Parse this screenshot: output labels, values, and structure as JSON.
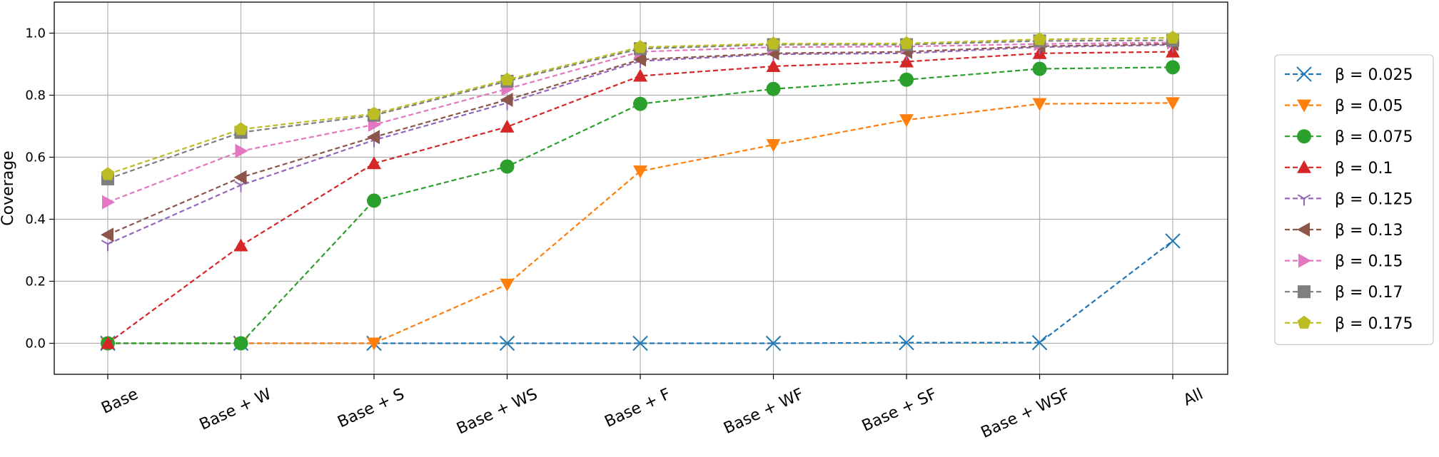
{
  "chart_data": {
    "type": "line",
    "title": "",
    "xlabel": "",
    "ylabel": "Coverage",
    "categories": [
      "Base",
      "Base + W",
      "Base + S",
      "Base + WS",
      "Base + F",
      "Base + WF",
      "Base + SF",
      "Base + WSF",
      "All"
    ],
    "ylim": [
      -0.1,
      1.1
    ],
    "yticks": [
      "0.0",
      "0.2",
      "0.4",
      "0.6",
      "0.8",
      "1.0"
    ],
    "grid": true,
    "legend_position": "right",
    "series": [
      {
        "name": "β = 0.025",
        "color": "#1f77b4",
        "marker": "x",
        "values": [
          0.0,
          0.0,
          0.0,
          0.0,
          0.0,
          0.0,
          0.002,
          0.002,
          0.33
        ]
      },
      {
        "name": "β = 0.05",
        "color": "#ff7f0e",
        "marker": "triangle-down",
        "values": [
          0.0,
          0.0,
          0.0,
          0.19,
          0.555,
          0.64,
          0.72,
          0.772,
          0.775
        ]
      },
      {
        "name": "β = 0.075",
        "color": "#2ca02c",
        "marker": "circle",
        "values": [
          0.0,
          0.0,
          0.46,
          0.57,
          0.772,
          0.82,
          0.85,
          0.885,
          0.89
        ]
      },
      {
        "name": "β = 0.1",
        "color": "#d62728",
        "marker": "triangle-up",
        "values": [
          0.0,
          0.315,
          0.58,
          0.698,
          0.862,
          0.893,
          0.908,
          0.935,
          0.94
        ]
      },
      {
        "name": "β = 0.125",
        "color": "#9467bd",
        "marker": "tri-down",
        "values": [
          0.32,
          0.51,
          0.655,
          0.775,
          0.91,
          0.932,
          0.935,
          0.955,
          0.962
        ]
      },
      {
        "name": "β = 0.13",
        "color": "#8c564b",
        "marker": "triangle-left",
        "values": [
          0.35,
          0.535,
          0.665,
          0.785,
          0.915,
          0.935,
          0.94,
          0.958,
          0.965
        ]
      },
      {
        "name": "β = 0.15",
        "color": "#e377c2",
        "marker": "triangle-right",
        "values": [
          0.455,
          0.62,
          0.705,
          0.82,
          0.94,
          0.955,
          0.957,
          0.965,
          0.97
        ]
      },
      {
        "name": "β = 0.17",
        "color": "#7f7f7f",
        "marker": "square",
        "values": [
          0.53,
          0.68,
          0.735,
          0.845,
          0.95,
          0.963,
          0.963,
          0.975,
          0.977
        ]
      },
      {
        "name": "β = 0.175",
        "color": "#bcbd22",
        "marker": "pentagon",
        "values": [
          0.545,
          0.69,
          0.74,
          0.85,
          0.955,
          0.966,
          0.967,
          0.98,
          0.985
        ]
      }
    ]
  }
}
